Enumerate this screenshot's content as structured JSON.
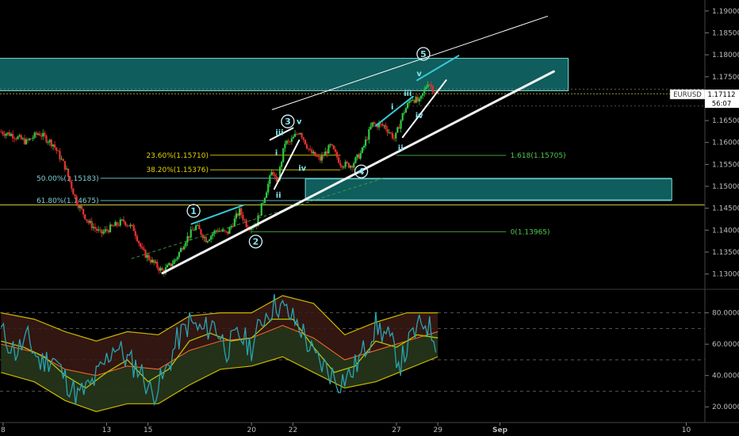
{
  "chart_data": [
    {
      "type": "candlestick",
      "symbol": "EURUSD",
      "last_price": "1.17112",
      "countdown": "56:07",
      "x_tick_labels": [
        {
          "label": "8",
          "day": 8
        },
        {
          "label": "13",
          "day": 13
        },
        {
          "label": "15",
          "day": 15
        },
        {
          "label": "20",
          "day": 20
        },
        {
          "label": "22",
          "day": 22
        },
        {
          "label": "27",
          "day": 27
        },
        {
          "label": "29",
          "day": 29
        },
        {
          "label": "Sep",
          "day": 32
        },
        {
          "label": "10",
          "day": 41
        }
      ],
      "y_tick_labels": [
        "1.19000",
        "1.18500",
        "1.18000",
        "1.17500",
        "1.17000",
        "1.16500",
        "1.16000",
        "1.15500",
        "1.15000",
        "1.14500",
        "1.14000",
        "1.13500",
        "1.13000"
      ],
      "ylim": [
        1.1265,
        1.1925
      ],
      "resistance_zone": {
        "price_low": 1.1718,
        "price_high": 1.1792,
        "day_start": 0,
        "day_end": 35.3
      },
      "support_zone": {
        "price_low": 1.1469,
        "price_high": 1.1517,
        "day_start": 22.6,
        "day_end": 40.3
      },
      "horizontal_level": 1.14575,
      "fib_retracement": [
        {
          "label": "23.60%(1.15710)",
          "price": 1.1571
        },
        {
          "label": "38.20%(1.15376)",
          "price": 1.15376
        },
        {
          "label": "50.00%(1.15183)",
          "price": 1.15183
        },
        {
          "label": "61.80%(1.14675)",
          "price": 1.14675
        }
      ],
      "fib_extension": [
        {
          "label": "1.618(1.15705)",
          "price": 1.15705
        },
        {
          "label": "0(1.13965)",
          "price": 1.13965
        }
      ],
      "wave_labels": [
        {
          "text": "1",
          "circled": true,
          "day": 17.2,
          "price": 1.1444
        },
        {
          "text": "2",
          "circled": true,
          "day": 20.2,
          "price": 1.1374
        },
        {
          "text": "3",
          "circled": true,
          "day": 21.75,
          "price": 1.1648
        },
        {
          "text": "4",
          "circled": true,
          "day": 25.3,
          "price": 1.1534
        },
        {
          "text": "5",
          "circled": true,
          "day": 28.3,
          "price": 1.1802
        },
        {
          "text": "i",
          "circled": false,
          "day": 21.2,
          "price": 1.1576
        },
        {
          "text": "ii",
          "circled": false,
          "day": 21.3,
          "price": 1.1479
        },
        {
          "text": "iii",
          "circled": false,
          "day": 21.35,
          "price": 1.1622
        },
        {
          "text": "iv",
          "circled": false,
          "day": 22.45,
          "price": 1.1541
        },
        {
          "text": "v",
          "circled": false,
          "day": 22.3,
          "price": 1.1647
        },
        {
          "text": "i",
          "circled": false,
          "day": 26.8,
          "price": 1.1681
        },
        {
          "text": "ii",
          "circled": false,
          "day": 27.2,
          "price": 1.1587
        },
        {
          "text": "iii",
          "circled": false,
          "day": 27.55,
          "price": 1.1712
        },
        {
          "text": "iv",
          "circled": false,
          "day": 28.1,
          "price": 1.1661
        },
        {
          "text": "v",
          "circled": false,
          "day": 28.1,
          "price": 1.1757
        }
      ],
      "trend_lines": [
        {
          "role": "main-support",
          "color": "#f2f2f2",
          "from": {
            "day": 15.7,
            "price": 1.1302
          },
          "to": {
            "day": 34.6,
            "price": 1.1762
          }
        },
        {
          "role": "channel-top",
          "color": "#ffffff",
          "from": {
            "day": 21.0,
            "price": 1.1675
          },
          "to": {
            "day": 34.3,
            "price": 1.1888
          }
        },
        {
          "role": "wave-1-top",
          "color": "#38c8d8",
          "from": {
            "day": 17.1,
            "price": 1.1414
          },
          "to": {
            "day": 19.6,
            "price": 1.1457
          }
        },
        {
          "role": "wave-3-top",
          "color": "#ffffff",
          "from": {
            "day": 20.9,
            "price": 1.1606
          },
          "to": {
            "day": 22.0,
            "price": 1.1633
          }
        },
        {
          "role": "wave-3-inner",
          "color": "#ffffff",
          "from": {
            "day": 21.1,
            "price": 1.1494
          },
          "to": {
            "day": 22.3,
            "price": 1.1605
          }
        },
        {
          "role": "wave-5-top",
          "color": "#38c8d8",
          "from": {
            "day": 28.0,
            "price": 1.1742
          },
          "to": {
            "day": 30.0,
            "price": 1.1798
          }
        },
        {
          "role": "wave-3b-top",
          "color": "#38c8d8",
          "from": {
            "day": 26.0,
            "price": 1.1638
          },
          "to": {
            "day": 27.8,
            "price": 1.1705
          }
        },
        {
          "role": "wave-5-inner",
          "color": "#ffffff",
          "from": {
            "day": 27.3,
            "price": 1.1612
          },
          "to": {
            "day": 29.4,
            "price": 1.1742
          }
        }
      ],
      "price_path": [
        {
          "day": 7.9,
          "price": 1.1625
        },
        {
          "day": 8.5,
          "price": 1.1618
        },
        {
          "day": 9.2,
          "price": 1.1601
        },
        {
          "day": 9.8,
          "price": 1.1622
        },
        {
          "day": 10.5,
          "price": 1.1596
        },
        {
          "day": 11.1,
          "price": 1.1542
        },
        {
          "day": 11.6,
          "price": 1.1468
        },
        {
          "day": 12.2,
          "price": 1.1418
        },
        {
          "day": 12.8,
          "price": 1.1392
        },
        {
          "day": 13.3,
          "price": 1.1406
        },
        {
          "day": 13.9,
          "price": 1.1421
        },
        {
          "day": 14.4,
          "price": 1.1402
        },
        {
          "day": 14.8,
          "price": 1.1352
        },
        {
          "day": 15.3,
          "price": 1.1327
        },
        {
          "day": 15.8,
          "price": 1.1305
        },
        {
          "day": 16.4,
          "price": 1.1332
        },
        {
          "day": 16.9,
          "price": 1.1378
        },
        {
          "day": 17.4,
          "price": 1.1409
        },
        {
          "day": 17.9,
          "price": 1.1378
        },
        {
          "day": 18.4,
          "price": 1.1401
        },
        {
          "day": 18.9,
          "price": 1.1392
        },
        {
          "day": 19.5,
          "price": 1.1444
        },
        {
          "day": 19.9,
          "price": 1.1408
        },
        {
          "day": 20.3,
          "price": 1.1412
        },
        {
          "day": 20.8,
          "price": 1.1492
        },
        {
          "day": 21.1,
          "price": 1.1538
        },
        {
          "day": 21.3,
          "price": 1.1502
        },
        {
          "day": 21.7,
          "price": 1.1601
        },
        {
          "day": 21.9,
          "price": 1.1598
        },
        {
          "day": 22.4,
          "price": 1.1628
        },
        {
          "day": 22.9,
          "price": 1.1578
        },
        {
          "day": 23.4,
          "price": 1.1561
        },
        {
          "day": 23.9,
          "price": 1.1592
        },
        {
          "day": 24.4,
          "price": 1.1551
        },
        {
          "day": 24.9,
          "price": 1.1548
        },
        {
          "day": 25.4,
          "price": 1.1578
        },
        {
          "day": 25.9,
          "price": 1.1642
        },
        {
          "day": 26.5,
          "price": 1.1638
        },
        {
          "day": 27.0,
          "price": 1.1608
        },
        {
          "day": 27.4,
          "price": 1.1666
        },
        {
          "day": 27.8,
          "price": 1.1702
        },
        {
          "day": 28.2,
          "price": 1.1692
        },
        {
          "day": 28.6,
          "price": 1.1739
        },
        {
          "day": 29.0,
          "price": 1.1711
        }
      ]
    },
    {
      "type": "line",
      "panel": "oscillator",
      "y_tick_labels": [
        "80.0000",
        "60.0000",
        "40.0000",
        "20.0000"
      ],
      "ylim": [
        10,
        95
      ],
      "reference_levels": [
        80,
        70,
        50,
        30
      ],
      "series_colors": {
        "fast": "#2aa3b0",
        "slow": "#b5c400",
        "band": "#c9b800",
        "mid": "#ff6b2c"
      },
      "fast_path": [
        {
          "day": 7.9,
          "value": 68
        },
        {
          "day": 8.6,
          "value": 55
        },
        {
          "day": 9.2,
          "value": 63
        },
        {
          "day": 9.8,
          "value": 48
        },
        {
          "day": 10.4,
          "value": 52
        },
        {
          "day": 11.0,
          "value": 38
        },
        {
          "day": 11.6,
          "value": 27
        },
        {
          "day": 12.2,
          "value": 33
        },
        {
          "day": 12.8,
          "value": 45
        },
        {
          "day": 13.4,
          "value": 60
        },
        {
          "day": 14.0,
          "value": 50
        },
        {
          "day": 14.6,
          "value": 44
        },
        {
          "day": 15.2,
          "value": 28
        },
        {
          "day": 15.8,
          "value": 40
        },
        {
          "day": 16.4,
          "value": 62
        },
        {
          "day": 17.0,
          "value": 74
        },
        {
          "day": 17.6,
          "value": 68
        },
        {
          "day": 18.2,
          "value": 73
        },
        {
          "day": 18.8,
          "value": 57
        },
        {
          "day": 19.4,
          "value": 66
        },
        {
          "day": 20.0,
          "value": 58
        },
        {
          "day": 20.6,
          "value": 78
        },
        {
          "day": 21.2,
          "value": 86
        },
        {
          "day": 21.8,
          "value": 79
        },
        {
          "day": 22.4,
          "value": 70
        },
        {
          "day": 23.0,
          "value": 52
        },
        {
          "day": 23.6,
          "value": 45
        },
        {
          "day": 24.2,
          "value": 36
        },
        {
          "day": 24.8,
          "value": 41
        },
        {
          "day": 25.4,
          "value": 55
        },
        {
          "day": 26.0,
          "value": 72
        },
        {
          "day": 26.6,
          "value": 64
        },
        {
          "day": 27.2,
          "value": 48
        },
        {
          "day": 27.8,
          "value": 66
        },
        {
          "day": 28.4,
          "value": 75
        },
        {
          "day": 29.0,
          "value": 60
        }
      ],
      "slow_path": [
        {
          "day": 7.9,
          "value": 62
        },
        {
          "day": 9.0,
          "value": 58
        },
        {
          "day": 10.0,
          "value": 52
        },
        {
          "day": 11.0,
          "value": 40
        },
        {
          "day": 12.0,
          "value": 32
        },
        {
          "day": 13.0,
          "value": 42
        },
        {
          "day": 14.0,
          "value": 50
        },
        {
          "day": 15.0,
          "value": 36
        },
        {
          "day": 16.0,
          "value": 44
        },
        {
          "day": 17.0,
          "value": 62
        },
        {
          "day": 18.0,
          "value": 67
        },
        {
          "day": 19.0,
          "value": 62
        },
        {
          "day": 20.0,
          "value": 64
        },
        {
          "day": 21.0,
          "value": 76
        },
        {
          "day": 22.0,
          "value": 76
        },
        {
          "day": 23.0,
          "value": 58
        },
        {
          "day": 24.0,
          "value": 42
        },
        {
          "day": 25.0,
          "value": 46
        },
        {
          "day": 26.0,
          "value": 62
        },
        {
          "day": 27.0,
          "value": 58
        },
        {
          "day": 28.0,
          "value": 66
        },
        {
          "day": 29.0,
          "value": 64
        }
      ],
      "mid_path": [
        {
          "day": 7.9,
          "value": 60
        },
        {
          "day": 9.5,
          "value": 55
        },
        {
          "day": 11.0,
          "value": 44
        },
        {
          "day": 12.5,
          "value": 40
        },
        {
          "day": 14.0,
          "value": 46
        },
        {
          "day": 15.5,
          "value": 44
        },
        {
          "day": 17.0,
          "value": 56
        },
        {
          "day": 18.5,
          "value": 62
        },
        {
          "day": 20.0,
          "value": 64
        },
        {
          "day": 21.5,
          "value": 72
        },
        {
          "day": 23.0,
          "value": 64
        },
        {
          "day": 24.5,
          "value": 50
        },
        {
          "day": 26.0,
          "value": 56
        },
        {
          "day": 27.5,
          "value": 62
        },
        {
          "day": 29.0,
          "value": 68
        }
      ],
      "upper_band": [
        {
          "day": 7.9,
          "value": 80
        },
        {
          "day": 9.5,
          "value": 76
        },
        {
          "day": 11.0,
          "value": 68
        },
        {
          "day": 12.5,
          "value": 62
        },
        {
          "day": 14.0,
          "value": 68
        },
        {
          "day": 15.5,
          "value": 66
        },
        {
          "day": 17.0,
          "value": 78
        },
        {
          "day": 18.5,
          "value": 80
        },
        {
          "day": 20.0,
          "value": 80
        },
        {
          "day": 21.5,
          "value": 91
        },
        {
          "day": 23.0,
          "value": 86
        },
        {
          "day": 24.5,
          "value": 66
        },
        {
          "day": 26.0,
          "value": 74
        },
        {
          "day": 27.5,
          "value": 80
        },
        {
          "day": 29.0,
          "value": 80
        }
      ],
      "lower_band": [
        {
          "day": 7.9,
          "value": 42
        },
        {
          "day": 9.5,
          "value": 36
        },
        {
          "day": 11.0,
          "value": 24
        },
        {
          "day": 12.5,
          "value": 17
        },
        {
          "day": 14.0,
          "value": 22
        },
        {
          "day": 15.5,
          "value": 22
        },
        {
          "day": 17.0,
          "value": 34
        },
        {
          "day": 18.5,
          "value": 44
        },
        {
          "day": 20.0,
          "value": 46
        },
        {
          "day": 21.5,
          "value": 52
        },
        {
          "day": 23.0,
          "value": 42
        },
        {
          "day": 24.5,
          "value": 32
        },
        {
          "day": 26.0,
          "value": 36
        },
        {
          "day": 27.5,
          "value": 44
        },
        {
          "day": 29.0,
          "value": 52
        }
      ]
    }
  ]
}
